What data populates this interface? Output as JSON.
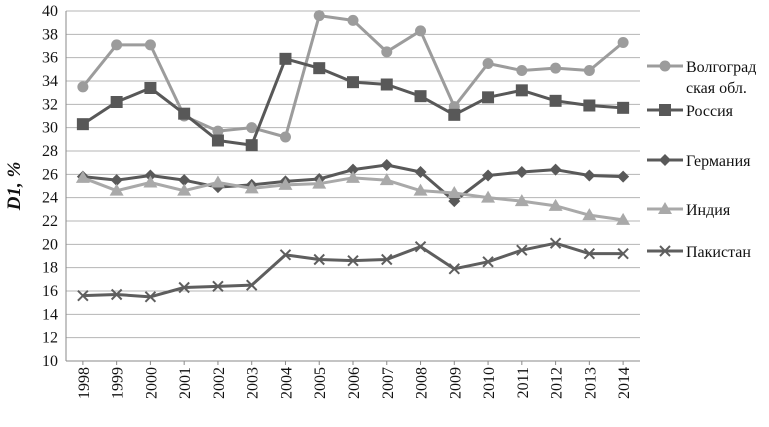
{
  "chart_data": {
    "type": "line",
    "title": "",
    "xlabel": "",
    "ylabel": "D1, %",
    "ylim": [
      10,
      40
    ],
    "ytick_step": 2,
    "grid": "horizontal",
    "legend_position": "right",
    "x": [
      "1998",
      "1999",
      "2000",
      "2001",
      "2002",
      "2003",
      "2004",
      "2005",
      "2006",
      "2007",
      "2008",
      "2009",
      "2010",
      "2011",
      "2012",
      "2013",
      "2014"
    ],
    "series": [
      {
        "name": "Волгоград ская обл.",
        "legend_lines": [
          "Волгоград",
          "ская обл."
        ],
        "marker": "circle",
        "color": "#9c9c9c",
        "values": [
          33.5,
          37.1,
          37.1,
          31.0,
          29.7,
          30.0,
          29.2,
          39.6,
          39.2,
          36.5,
          38.3,
          31.8,
          35.5,
          34.9,
          35.1,
          34.9,
          37.3
        ]
      },
      {
        "name": "Россия",
        "legend_lines": [
          "Россия"
        ],
        "marker": "square",
        "color": "#585858",
        "values": [
          30.3,
          32.2,
          33.4,
          31.2,
          28.9,
          28.5,
          35.9,
          35.1,
          33.9,
          33.7,
          32.7,
          31.1,
          32.6,
          33.2,
          32.3,
          31.9,
          31.7
        ]
      },
      {
        "name": "Германия",
        "legend_lines": [
          "Германия"
        ],
        "marker": "diamond",
        "color": "#595959",
        "values": [
          25.8,
          25.5,
          25.9,
          25.5,
          24.9,
          25.1,
          25.4,
          25.6,
          26.4,
          26.8,
          26.2,
          23.7,
          25.9,
          26.2,
          26.4,
          25.9,
          25.8
        ]
      },
      {
        "name": "Индия",
        "legend_lines": [
          "Индия"
        ],
        "marker": "triangle",
        "color": "#a9a9a9",
        "values": [
          25.7,
          24.6,
          25.3,
          24.6,
          25.3,
          24.8,
          25.1,
          25.2,
          25.7,
          25.5,
          24.6,
          24.4,
          24.0,
          23.7,
          23.3,
          22.5,
          22.1
        ]
      },
      {
        "name": "Пакистан",
        "legend_lines": [
          "Пакистан"
        ],
        "marker": "x",
        "color": "#5e5e5e",
        "values": [
          15.6,
          15.7,
          15.5,
          16.3,
          16.4,
          16.5,
          19.1,
          18.7,
          18.6,
          18.7,
          19.8,
          17.9,
          18.5,
          19.5,
          20.1,
          19.2,
          19.2
        ]
      }
    ]
  }
}
